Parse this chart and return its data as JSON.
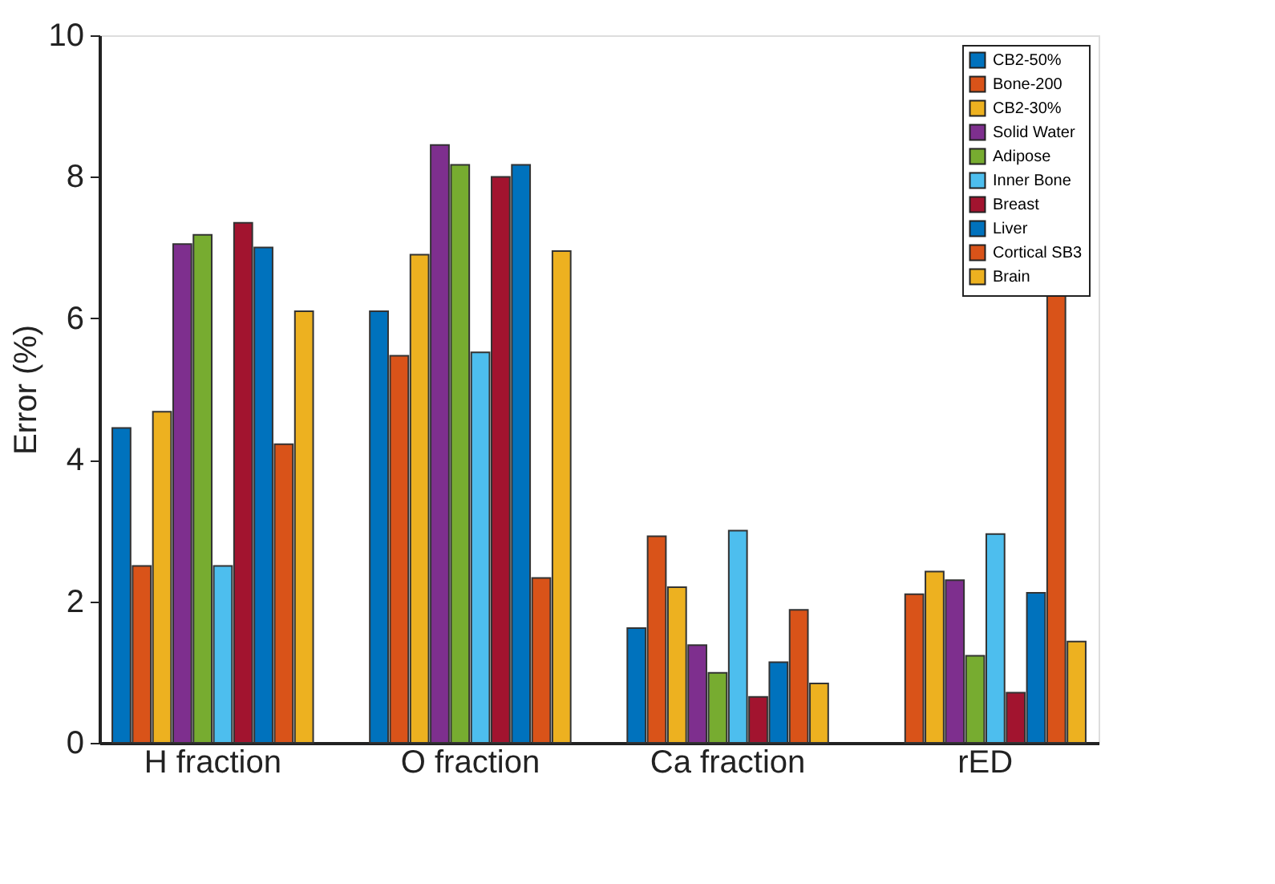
{
  "chart_data": {
    "type": "bar",
    "ylabel": "Error (%)",
    "categories": [
      "H fraction",
      "O fraction",
      "Ca fraction",
      "rED"
    ],
    "series": [
      {
        "name": "CB2-50%",
        "color": "#0072bd",
        "values": [
          4.45,
          6.1,
          1.62,
          null
        ]
      },
      {
        "name": "Bone-200",
        "color": "#d95319",
        "values": [
          2.5,
          5.47,
          2.92,
          2.1
        ]
      },
      {
        "name": "CB2-30%",
        "color": "#edb120",
        "values": [
          4.68,
          6.9,
          2.2,
          2.42
        ]
      },
      {
        "name": "Solid Water",
        "color": "#7e2f8e",
        "values": [
          7.05,
          8.45,
          1.38,
          2.3
        ]
      },
      {
        "name": "Adipose",
        "color": "#77ac30",
        "values": [
          7.18,
          8.17,
          0.99,
          1.23
        ]
      },
      {
        "name": "Inner Bone",
        "color": "#4dbeee",
        "values": [
          2.5,
          5.52,
          3.0,
          2.95
        ]
      },
      {
        "name": "Breast",
        "color": "#a2142f",
        "values": [
          7.35,
          8.0,
          0.65,
          0.71
        ]
      },
      {
        "name": "Liver",
        "color": "#0072bd",
        "values": [
          7.0,
          8.17,
          1.14,
          2.12
        ]
      },
      {
        "name": "Cortical SB3",
        "color": "#d95319",
        "values": [
          4.22,
          2.33,
          1.88,
          6.38
        ]
      },
      {
        "name": "Brain",
        "color": "#edb120",
        "values": [
          6.1,
          6.95,
          0.84,
          1.43
        ]
      }
    ],
    "ylim": [
      0,
      10
    ],
    "yticks": [
      0,
      2,
      4,
      6,
      8,
      10
    ],
    "grid": false,
    "legend": "top right"
  }
}
